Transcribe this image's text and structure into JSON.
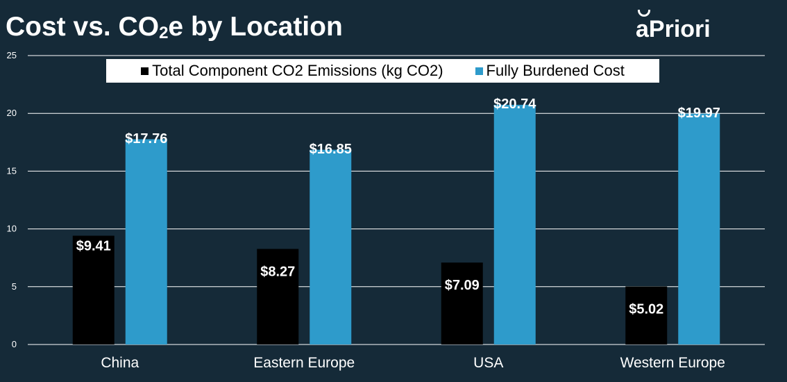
{
  "title": {
    "main": "Cost vs. CO",
    "sub": "2",
    "tail": "e by Location"
  },
  "brand": {
    "logo_text": "aPriori"
  },
  "chart_data": {
    "type": "bar",
    "categories": [
      "China",
      "Eastern Europe",
      "USA",
      "Western Europe"
    ],
    "series": [
      {
        "name": "Total Component CO2 Emissions (kg CO2)",
        "values": [
          9.41,
          8.27,
          7.09,
          5.02
        ],
        "data_labels": [
          "$9.41",
          "$8.27",
          "$7.09",
          "$5.02"
        ],
        "color": "#000000"
      },
      {
        "name": "Fully Burdened Cost",
        "values": [
          17.76,
          16.85,
          20.74,
          19.97
        ],
        "data_labels": [
          "$17.76",
          "$16.85",
          "$20.74",
          "$19.97"
        ],
        "color": "#2e9bcb"
      }
    ],
    "yticks": [
      0,
      5,
      10,
      15,
      20,
      25
    ],
    "ylim": [
      0,
      25
    ],
    "grid": true,
    "legend_position": "top"
  },
  "colors": {
    "background": "#152a38",
    "gridline": "#ffffff",
    "text": "#ffffff"
  }
}
